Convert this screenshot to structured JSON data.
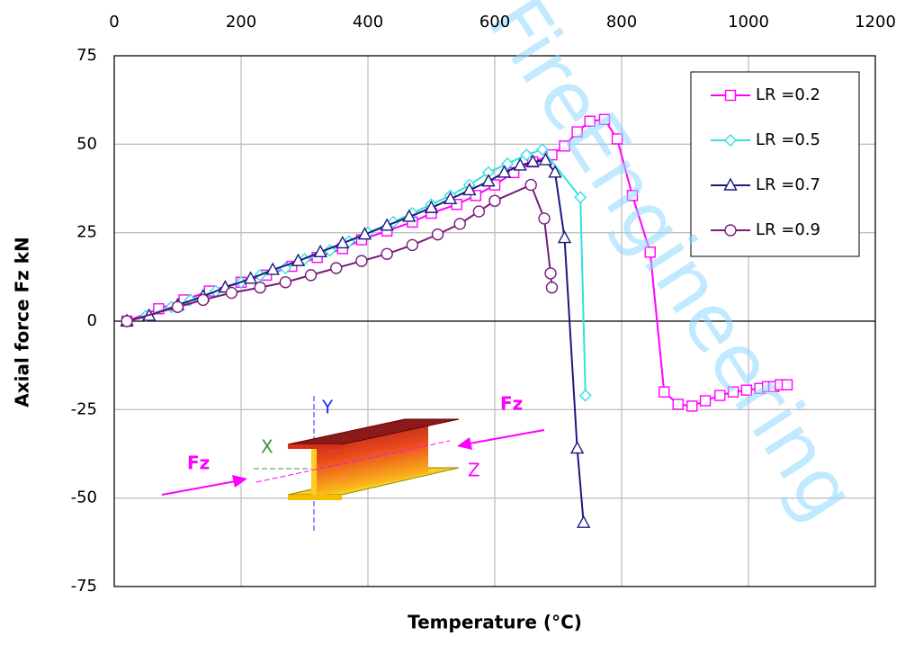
{
  "chart_data": {
    "type": "line",
    "xlabel": "Temperature (°C)",
    "ylabel": "Axial force Fz kN",
    "watermark": "FireEngineering",
    "xlim": [
      0,
      1200
    ],
    "xticks": [
      0,
      200,
      400,
      600,
      800,
      1000,
      1200
    ],
    "ylim": [
      -75,
      75
    ],
    "yticks": [
      -75,
      -50,
      -25,
      0,
      25,
      50,
      75
    ],
    "grid": true,
    "legend": "upper right",
    "series": [
      {
        "name": "LR =0.2",
        "color": "#ff00ff",
        "marker": "square",
        "x": [
          20,
          70,
          110,
          150,
          200,
          240,
          280,
          320,
          360,
          390,
          430,
          470,
          500,
          540,
          570,
          600,
          630,
          660,
          690,
          710,
          730,
          750,
          773,
          793,
          817,
          845,
          867,
          889,
          911,
          932,
          955,
          976,
          997,
          1018,
          1030,
          1040,
          1050,
          1061
        ],
        "values": [
          0,
          3.5,
          6,
          8.5,
          11,
          13,
          15.5,
          18,
          20.5,
          23,
          25.5,
          28,
          30.5,
          33,
          35.5,
          38.5,
          42,
          45,
          47,
          49.5,
          53.5,
          56.5,
          57,
          51.5,
          35.5,
          19.5,
          -20,
          -23.5,
          -24,
          -22.5,
          -21,
          -20,
          -19.5,
          -19,
          -18.5,
          -18.5,
          -18,
          -18
        ]
      },
      {
        "name": "LR =0.5",
        "color": "#33e0e0",
        "marker": "diamond",
        "x": [
          20,
          50,
          90,
          120,
          160,
          200,
          230,
          270,
          300,
          340,
          370,
          400,
          440,
          470,
          500,
          530,
          560,
          590,
          620,
          650,
          675,
          735,
          743
        ],
        "values": [
          0,
          1.5,
          4,
          6,
          8.5,
          11,
          13,
          15,
          17.5,
          20,
          22.5,
          25,
          28,
          30.5,
          33,
          35.5,
          38.5,
          42,
          44.5,
          47,
          48.5,
          35,
          -21
        ]
      },
      {
        "name": "LR =0.7",
        "color": "#1a1a80",
        "marker": "triangle",
        "x": [
          20,
          55,
          100,
          140,
          175,
          215,
          250,
          290,
          325,
          360,
          395,
          430,
          465,
          500,
          530,
          560,
          590,
          615,
          640,
          660,
          680,
          695,
          710,
          730,
          740
        ],
        "values": [
          0,
          1.5,
          4.5,
          7,
          9.5,
          12,
          14.5,
          17,
          19.5,
          22,
          24.5,
          27,
          29.5,
          32,
          34.5,
          37,
          39.5,
          42,
          44,
          45,
          45.5,
          42,
          23.5,
          -36,
          -57
        ]
      },
      {
        "name": "LR =0.9",
        "color": "#7a1a7a",
        "marker": "circle",
        "x": [
          20,
          100,
          140,
          185,
          230,
          270,
          310,
          350,
          390,
          430,
          470,
          510,
          545,
          575,
          600,
          657,
          678,
          688,
          690
        ],
        "values": [
          0,
          4,
          6,
          8,
          9.5,
          11,
          13,
          15,
          17,
          19,
          21.5,
          24.5,
          27.5,
          31,
          34,
          38.5,
          29,
          13.5,
          9.5
        ]
      }
    ],
    "inset_labels": {
      "y_axis": "Y",
      "x_axis": "X",
      "z_axis": "Z",
      "force_left": "Fz",
      "force_right": "Fz"
    }
  }
}
